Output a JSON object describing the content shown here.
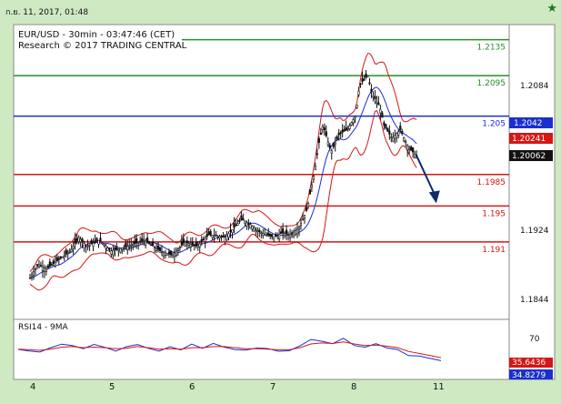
{
  "header": {
    "date_time": "ก.ย. 11, 2017, 01:48",
    "star_icon": "★"
  },
  "chart_data": [
    {
      "type": "candlestick",
      "title": "EUR/USD - 30min - 03:47:46 (CET)",
      "subtitle": "Research © 2017 TRADING CENTRAL",
      "y_axis": {
        "ticks": [
          "1.2084",
          "1.1924",
          "1.1844"
        ]
      },
      "x_axis": {
        "ticks": [
          "4",
          "5",
          "6",
          "7",
          "8",
          "11"
        ]
      },
      "price_labels": [
        {
          "text": "1.2042",
          "kind": "blue-tag"
        },
        {
          "text": "1.20241",
          "kind": "red-tag"
        },
        {
          "text": "1.20062",
          "kind": "black-tag"
        }
      ],
      "levels": [
        {
          "label": "1.2135",
          "value": 1.2135,
          "color": "#2a8c2a"
        },
        {
          "label": "1.2095",
          "value": 1.2095,
          "color": "#2a8c2a"
        },
        {
          "label": "1.205",
          "value": 1.205,
          "color": "#1a2fd1"
        },
        {
          "label": "1.1985",
          "value": 1.1985,
          "color": "#d41616"
        },
        {
          "label": "1.195",
          "value": 1.195,
          "color": "#d41616"
        },
        {
          "label": "1.191",
          "value": 1.191,
          "color": "#d41616"
        }
      ],
      "close_path": [
        [
          0.0,
          1.187
        ],
        [
          0.1,
          1.1885
        ],
        [
          0.2,
          1.188
        ],
        [
          0.35,
          1.189
        ],
        [
          0.5,
          1.19
        ],
        [
          0.6,
          1.1915
        ],
        [
          0.7,
          1.1905
        ],
        [
          0.85,
          1.1912
        ],
        [
          1.0,
          1.19
        ],
        [
          1.2,
          1.1905
        ],
        [
          1.4,
          1.1912
        ],
        [
          1.6,
          1.19
        ],
        [
          1.75,
          1.1895
        ],
        [
          1.9,
          1.191
        ],
        [
          2.05,
          1.1905
        ],
        [
          2.2,
          1.1918
        ],
        [
          2.4,
          1.1915
        ],
        [
          2.5,
          1.1925
        ],
        [
          2.6,
          1.1935
        ],
        [
          2.7,
          1.193
        ],
        [
          2.8,
          1.1922
        ],
        [
          2.9,
          1.1918
        ],
        [
          3.0,
          1.1915
        ],
        [
          3.1,
          1.192
        ],
        [
          3.2,
          1.1918
        ],
        [
          3.3,
          1.1925
        ],
        [
          3.4,
          1.1945
        ],
        [
          3.5,
          1.199
        ],
        [
          3.55,
          1.202
        ],
        [
          3.6,
          1.204
        ],
        [
          3.7,
          1.201
        ],
        [
          3.8,
          1.203
        ],
        [
          3.9,
          1.2035
        ],
        [
          4.0,
          1.205
        ],
        [
          4.05,
          1.2085
        ],
        [
          4.15,
          1.2095
        ],
        [
          4.2,
          1.2075
        ],
        [
          4.3,
          1.206
        ],
        [
          4.35,
          1.204
        ],
        [
          4.45,
          1.2025
        ],
        [
          4.55,
          1.2035
        ],
        [
          4.6,
          1.2025
        ],
        [
          4.65,
          1.2015
        ],
        [
          4.75,
          1.2006
        ]
      ],
      "forecast_arrow": {
        "from": [
          4.75,
          1.2006
        ],
        "to": [
          4.97,
          1.1955
        ]
      }
    },
    {
      "type": "line",
      "title": "RSI14 - 9MA",
      "y_axis": {
        "ticks": [
          "70"
        ]
      },
      "series": [
        {
          "color": "#1a2fd1",
          "values": [
            0.5,
            0.5,
            0.48,
            0.55,
            0.62,
            0.58,
            0.52,
            0.6,
            0.55,
            0.5,
            0.56,
            0.62,
            0.52,
            0.48,
            0.55,
            0.5,
            0.6,
            0.55,
            0.62,
            0.58,
            0.52,
            0.5,
            0.55,
            0.52,
            0.48,
            0.5,
            0.6,
            0.72,
            0.68,
            0.62,
            0.72,
            0.58,
            0.55,
            0.62,
            0.56,
            0.5,
            0.4,
            0.38,
            0.35,
            0.3
          ]
        },
        {
          "color": "#d41616",
          "values": [
            0.52,
            0.51,
            0.5,
            0.52,
            0.56,
            0.57,
            0.55,
            0.56,
            0.55,
            0.53,
            0.54,
            0.57,
            0.55,
            0.52,
            0.53,
            0.52,
            0.55,
            0.55,
            0.57,
            0.57,
            0.55,
            0.53,
            0.53,
            0.52,
            0.51,
            0.51,
            0.55,
            0.62,
            0.64,
            0.63,
            0.66,
            0.62,
            0.59,
            0.6,
            0.58,
            0.55,
            0.48,
            0.44,
            0.4,
            0.36
          ]
        }
      ],
      "value_labels": [
        {
          "text": "35.6436",
          "kind": "red-tag"
        },
        {
          "text": "34.8279",
          "kind": "blue-tag"
        }
      ]
    }
  ]
}
